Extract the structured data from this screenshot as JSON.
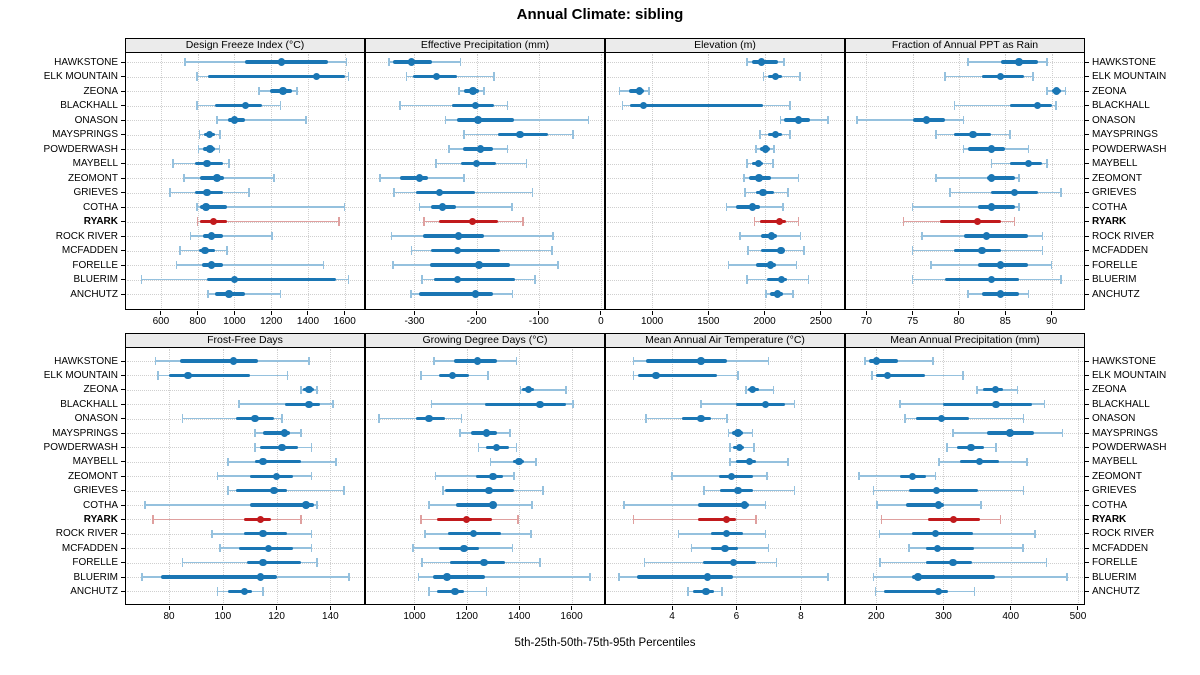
{
  "title": "Annual Climate: sibling",
  "caption": "5th-25th-50th-75th-95th Percentiles",
  "highlight_site": "RYARK",
  "colors": {
    "blue": "#1a76b4",
    "blue_light": "#95c1de",
    "red": "#c11a1d",
    "red_light": "#dfa09f",
    "strip_bg": "#ebebeb",
    "grid": "#cfcfcf",
    "border": "#000000"
  },
  "chart_data": {
    "type": "percentile_interval_trellis",
    "percentiles": [
      "5th",
      "25th",
      "50th",
      "75th",
      "95th"
    ],
    "grid": "dotted",
    "sites": [
      "HAWKSTONE",
      "ELK MOUNTAIN",
      "ZEONA",
      "BLACKHALL",
      "ONASON",
      "MAYSPRINGS",
      "POWDERWASH",
      "MAYBELL",
      "ZEOMONT",
      "GRIEVES",
      "COTHA",
      "RYARK",
      "ROCK RIVER",
      "MCFADDEN",
      "FORELLE",
      "BLUERIM",
      "ANCHUTZ"
    ],
    "panels": [
      {
        "title": "Design Freeze Index (°C)",
        "grid_row": 0,
        "grid_col": 0,
        "xlim": [
          410,
          1705
        ],
        "ticks": [
          600,
          800,
          1000,
          1200,
          1400,
          1600
        ],
        "values": [
          [
            730,
            1055,
            1255,
            1510,
            1610
          ],
          [
            795,
            855,
            1445,
            1600,
            1620
          ],
          [
            1135,
            1195,
            1265,
            1315,
            1340
          ],
          [
            795,
            895,
            1060,
            1150,
            1250
          ],
          [
            905,
            965,
            1000,
            1055,
            1390
          ],
          [
            810,
            835,
            865,
            895,
            920
          ],
          [
            805,
            830,
            868,
            895,
            918
          ],
          [
            665,
            785,
            850,
            940,
            970
          ],
          [
            725,
            815,
            905,
            945,
            1215
          ],
          [
            650,
            785,
            850,
            940,
            1080
          ],
          [
            795,
            810,
            845,
            960,
            1600
          ],
          [
            800,
            815,
            885,
            960,
            1570
          ],
          [
            760,
            830,
            875,
            940,
            1205
          ],
          [
            705,
            805,
            840,
            895,
            960
          ],
          [
            685,
            825,
            875,
            940,
            1485
          ],
          [
            495,
            850,
            1000,
            1555,
            1620
          ],
          [
            855,
            895,
            970,
            1060,
            1250
          ]
        ]
      },
      {
        "title": "Effective Precipitation (mm)",
        "grid_row": 0,
        "grid_col": 1,
        "xlim": [
          -378,
          5
        ],
        "ticks": [
          -300,
          -200,
          -100,
          0
        ],
        "values": [
          [
            -341,
            -334,
            -305,
            -271,
            -226
          ],
          [
            -313,
            -302,
            -265,
            -232,
            -172
          ],
          [
            -228,
            -220,
            -206,
            -196,
            -188
          ],
          [
            -323,
            -239,
            -202,
            -172,
            -150
          ],
          [
            -250,
            -231,
            -198,
            -140,
            -20
          ],
          [
            -220,
            -165,
            -130,
            -85,
            -45
          ],
          [
            -244,
            -222,
            -194,
            -173,
            -150
          ],
          [
            -265,
            -225,
            -200,
            -168,
            -120
          ],
          [
            -355,
            -324,
            -292,
            -279,
            -220
          ],
          [
            -333,
            -297,
            -260,
            -203,
            -110
          ],
          [
            -292,
            -273,
            -255,
            -233,
            -143
          ],
          [
            -285,
            -260,
            -207,
            -166,
            -125
          ],
          [
            -337,
            -286,
            -229,
            -188,
            -77
          ],
          [
            -305,
            -273,
            -231,
            -162,
            -79
          ],
          [
            -335,
            -275,
            -196,
            -146,
            -69
          ],
          [
            -288,
            -269,
            -231,
            -138,
            -106
          ],
          [
            -306,
            -292,
            -202,
            -173,
            -142
          ]
        ]
      },
      {
        "title": "Elevation (m)",
        "grid_row": 0,
        "grid_col": 2,
        "xlim": [
          590,
          2706
        ],
        "ticks": [
          1000,
          1500,
          2000,
          2500
        ],
        "values": [
          [
            1845,
            1890,
            1970,
            2120,
            2175
          ],
          [
            1990,
            2030,
            2095,
            2155,
            2315
          ],
          [
            710,
            795,
            890,
            930,
            970
          ],
          [
            735,
            800,
            925,
            1990,
            2225
          ],
          [
            2140,
            2175,
            2300,
            2400,
            2565
          ],
          [
            1960,
            2030,
            2095,
            2155,
            2225
          ],
          [
            1925,
            1955,
            2010,
            2050,
            2085
          ],
          [
            1845,
            1890,
            1945,
            1990,
            2075
          ],
          [
            1815,
            1865,
            1950,
            2060,
            2300
          ],
          [
            1825,
            1920,
            1985,
            2080,
            2210
          ],
          [
            1660,
            1750,
            1895,
            1955,
            2165
          ],
          [
            1910,
            1955,
            2130,
            2190,
            2300
          ],
          [
            1780,
            1970,
            2060,
            2110,
            2320
          ],
          [
            1850,
            1970,
            2145,
            2180,
            2350
          ],
          [
            1680,
            1925,
            2050,
            2100,
            2285
          ],
          [
            1845,
            2020,
            2150,
            2195,
            2390
          ],
          [
            2015,
            2045,
            2115,
            2165,
            2250
          ]
        ]
      },
      {
        "title": "Fraction of Annual PPT as Rain",
        "grid_row": 0,
        "grid_col": 3,
        "xlim": [
          67.8,
          93.5
        ],
        "ticks": [
          70,
          75,
          80,
          85,
          90
        ],
        "values": [
          [
            81,
            84.5,
            86.5,
            88.5,
            89.5
          ],
          [
            78.5,
            82.5,
            84.5,
            87,
            88
          ],
          [
            89.5,
            90,
            90.5,
            91,
            91.5
          ],
          [
            79.5,
            85.5,
            88.5,
            90,
            90.5
          ],
          [
            69,
            75,
            76.5,
            78.5,
            80.5
          ],
          [
            77.5,
            79.5,
            81.5,
            83.5,
            85.5
          ],
          [
            80.5,
            81,
            83.5,
            85,
            87.5
          ],
          [
            83.5,
            85.5,
            87.5,
            89,
            89.5
          ],
          [
            77.5,
            83,
            83.5,
            86,
            86.5
          ],
          [
            79,
            83.5,
            86,
            88.5,
            91
          ],
          [
            75,
            82,
            83.5,
            86,
            86.5
          ],
          [
            74,
            78,
            82,
            84.5,
            86
          ],
          [
            76,
            80.5,
            83,
            87.5,
            89
          ],
          [
            75,
            79.5,
            82.5,
            84.5,
            89
          ],
          [
            77,
            82,
            84.5,
            87.5,
            90
          ],
          [
            75,
            78.5,
            83.5,
            86.5,
            91
          ],
          [
            81,
            82.5,
            84.5,
            86.5,
            87.5
          ]
        ]
      },
      {
        "title": "Frost-Free Days",
        "grid_row": 1,
        "grid_col": 0,
        "xlim": [
          64,
          152.5
        ],
        "ticks": [
          80,
          100,
          120,
          140
        ],
        "values": [
          [
            75,
            84,
            104,
            113,
            132
          ],
          [
            76,
            80,
            87,
            110,
            124
          ],
          [
            129,
            130,
            132,
            134,
            135
          ],
          [
            106,
            123,
            132,
            136,
            141
          ],
          [
            85,
            105,
            112,
            119,
            122
          ],
          [
            112,
            115,
            123,
            125,
            129
          ],
          [
            112,
            114,
            122,
            128,
            133
          ],
          [
            102,
            112,
            115,
            129,
            142
          ],
          [
            98,
            110,
            120,
            126,
            133
          ],
          [
            102,
            105,
            119,
            124,
            145
          ],
          [
            71,
            110,
            131,
            134,
            135
          ],
          [
            74,
            108,
            114,
            118,
            129
          ],
          [
            96,
            108,
            115,
            124,
            133
          ],
          [
            99,
            106,
            117,
            126,
            133
          ],
          [
            85,
            109,
            115,
            129,
            135
          ],
          [
            70,
            77,
            114,
            120,
            147
          ],
          [
            98,
            102,
            108,
            111,
            115
          ]
        ]
      },
      {
        "title": "Growing Degree Days (°C)",
        "grid_row": 1,
        "grid_col": 1,
        "xlim": [
          815,
          1724
        ],
        "ticks": [
          1000,
          1200,
          1400,
          1600
        ],
        "values": [
          [
            1075,
            1150,
            1240,
            1315,
            1390
          ],
          [
            1025,
            1095,
            1145,
            1210,
            1280
          ],
          [
            1405,
            1410,
            1435,
            1455,
            1580
          ],
          [
            1065,
            1270,
            1480,
            1580,
            1605
          ],
          [
            865,
            1005,
            1055,
            1115,
            1180
          ],
          [
            1175,
            1215,
            1275,
            1315,
            1365
          ],
          [
            1245,
            1275,
            1313,
            1360,
            1390
          ],
          [
            1290,
            1375,
            1400,
            1420,
            1465
          ],
          [
            1080,
            1235,
            1300,
            1340,
            1380
          ],
          [
            1110,
            1115,
            1285,
            1380,
            1490
          ],
          [
            1055,
            1160,
            1300,
            1310,
            1450
          ],
          [
            1025,
            1085,
            1200,
            1295,
            1395
          ],
          [
            1040,
            1130,
            1225,
            1330,
            1445
          ],
          [
            995,
            1095,
            1190,
            1245,
            1375
          ],
          [
            1030,
            1135,
            1265,
            1345,
            1480
          ],
          [
            1015,
            1070,
            1125,
            1270,
            1670
          ],
          [
            1055,
            1085,
            1155,
            1190,
            1275
          ]
        ]
      },
      {
        "title": "Mean Annual Air Temperature (°C)",
        "grid_row": 1,
        "grid_col": 2,
        "xlim": [
          1.95,
          9.34
        ],
        "ticks": [
          4,
          6,
          8
        ],
        "values": [
          [
            2.8,
            3.2,
            4.9,
            5.7,
            7.0
          ],
          [
            2.8,
            2.95,
            3.5,
            5.4,
            6.05
          ],
          [
            6.3,
            6.35,
            6.5,
            6.7,
            7.15
          ],
          [
            4.9,
            6.0,
            6.9,
            7.5,
            7.8
          ],
          [
            3.2,
            4.3,
            4.9,
            5.2,
            5.7
          ],
          [
            5.75,
            5.85,
            6.05,
            6.2,
            6.5
          ],
          [
            5.8,
            5.9,
            6.1,
            6.25,
            6.55
          ],
          [
            5.8,
            6.0,
            6.4,
            6.6,
            7.6
          ],
          [
            4.0,
            5.45,
            5.85,
            6.5,
            6.95
          ],
          [
            5.0,
            5.5,
            6.05,
            6.5,
            7.8
          ],
          [
            2.5,
            4.8,
            6.25,
            6.4,
            6.9
          ],
          [
            2.8,
            4.8,
            5.7,
            6.0,
            6.6
          ],
          [
            4.2,
            5.2,
            5.7,
            6.2,
            6.9
          ],
          [
            4.6,
            5.2,
            5.65,
            6.05,
            7.0
          ],
          [
            3.15,
            4.95,
            5.9,
            6.6,
            7.25
          ],
          [
            2.35,
            2.9,
            5.1,
            5.9,
            8.85
          ],
          [
            4.5,
            4.65,
            5.05,
            5.3,
            5.55
          ]
        ]
      },
      {
        "title": "Mean Annual Precipitation (mm)",
        "grid_row": 1,
        "grid_col": 3,
        "xlim": [
          155,
          509
        ],
        "ticks": [
          200,
          300,
          400,
          500
        ],
        "values": [
          [
            183,
            189,
            200,
            233,
            284
          ],
          [
            194,
            199,
            217,
            272,
            329
          ],
          [
            350,
            359,
            377,
            389,
            410
          ],
          [
            235,
            300,
            378,
            432,
            450
          ],
          [
            243,
            259,
            297,
            338,
            419
          ],
          [
            314,
            365,
            399,
            435,
            477
          ],
          [
            305,
            320,
            341,
            360,
            378
          ],
          [
            293,
            325,
            354,
            383,
            424
          ],
          [
            174,
            236,
            254,
            274,
            288
          ],
          [
            196,
            249,
            290,
            351,
            419
          ],
          [
            201,
            244,
            293,
            301,
            356
          ],
          [
            208,
            277,
            315,
            355,
            385
          ],
          [
            205,
            253,
            288,
            344,
            436
          ],
          [
            249,
            274,
            291,
            346,
            418
          ],
          [
            206,
            274,
            314,
            343,
            453
          ],
          [
            196,
            253,
            262,
            376,
            484
          ],
          [
            199,
            211,
            293,
            306,
            346
          ]
        ]
      }
    ]
  }
}
